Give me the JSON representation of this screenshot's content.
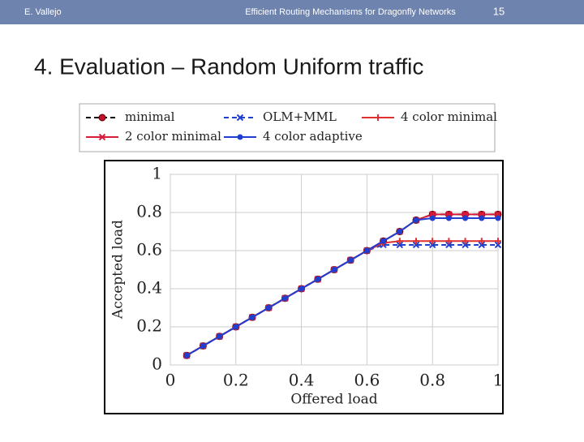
{
  "header": {
    "author": "E. Vallejo",
    "talk": "Efficient Routing Mechanisms for Dragonfly Networks",
    "page": "15"
  },
  "slide_title": "4. Evaluation – Random Uniform traffic",
  "chart_data": {
    "type": "line",
    "xlabel": "Offered load",
    "ylabel": "Accepted load",
    "x": [
      0.05,
      0.1,
      0.15,
      0.2,
      0.25,
      0.3,
      0.35,
      0.4,
      0.45,
      0.5,
      0.55,
      0.6,
      0.65,
      0.7,
      0.75,
      0.8,
      0.85,
      0.9,
      0.95,
      1
    ],
    "series": [
      {
        "name": "minimal",
        "color": "#000000",
        "dashed": true,
        "marker": "circle",
        "values": [
          0.05,
          0.1,
          0.15,
          0.2,
          0.25,
          0.3,
          0.35,
          0.4,
          0.45,
          0.5,
          0.55,
          0.6,
          0.65,
          0.7,
          0.76,
          0.79,
          0.79,
          0.79,
          0.79,
          0.79
        ]
      },
      {
        "name": "OLM+MML",
        "color": "#1f3fd0",
        "dashed": true,
        "marker": "x",
        "values": [
          0.05,
          0.1,
          0.15,
          0.2,
          0.25,
          0.3,
          0.35,
          0.4,
          0.45,
          0.5,
          0.55,
          0.6,
          0.63,
          0.63,
          0.63,
          0.63,
          0.63,
          0.63,
          0.63,
          0.63
        ]
      },
      {
        "name": "4 color minimal",
        "color": "#e03030",
        "dashed": false,
        "marker": "plus",
        "values": [
          0.05,
          0.1,
          0.15,
          0.2,
          0.25,
          0.3,
          0.35,
          0.4,
          0.45,
          0.5,
          0.55,
          0.6,
          0.64,
          0.65,
          0.65,
          0.65,
          0.65,
          0.65,
          0.65,
          0.65
        ]
      },
      {
        "name": "2 color minimal",
        "color": "#d81b3a",
        "dashed": false,
        "marker": "x",
        "values": [
          0.05,
          0.1,
          0.15,
          0.2,
          0.25,
          0.3,
          0.35,
          0.4,
          0.45,
          0.5,
          0.55,
          0.6,
          0.65,
          0.7,
          0.76,
          0.79,
          0.79,
          0.79,
          0.79,
          0.79
        ]
      },
      {
        "name": "4 color adaptive",
        "color": "#1f3fd0",
        "dashed": false,
        "marker": "dot",
        "values": [
          0.05,
          0.1,
          0.15,
          0.2,
          0.25,
          0.3,
          0.35,
          0.4,
          0.45,
          0.5,
          0.55,
          0.6,
          0.65,
          0.7,
          0.76,
          0.77,
          0.77,
          0.77,
          0.77,
          0.77
        ]
      }
    ],
    "xlim": [
      0,
      1
    ],
    "xticks": [
      0,
      0.2,
      0.4,
      0.6,
      0.8,
      1
    ],
    "ylim": [
      0,
      1
    ],
    "yticks": [
      0,
      0.2,
      0.4,
      0.6,
      0.8,
      1
    ],
    "grid": true
  }
}
